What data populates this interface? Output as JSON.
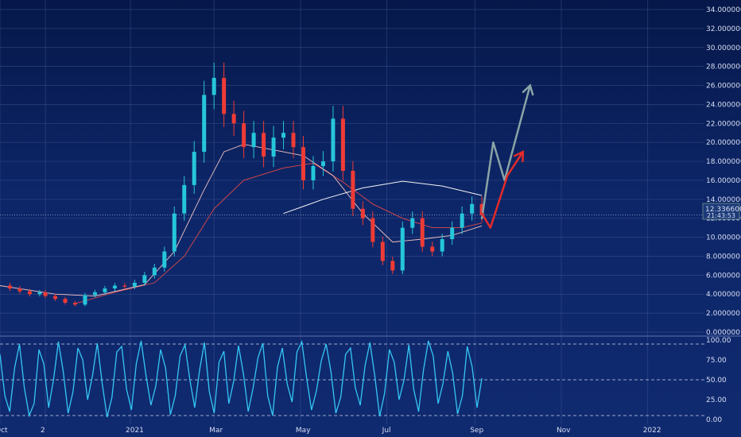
{
  "chart_data": [
    {
      "type": "candlestick",
      "currency": "USD",
      "ylim": [
        0,
        34
      ],
      "y_ticks": [
        "34.000000",
        "32.000000",
        "30.000000",
        "28.000000",
        "26.000000",
        "24.000000",
        "22.000000",
        "20.000000",
        "18.000000",
        "16.000000",
        "14.000000",
        "12.000000",
        "10.000000",
        "8.000000",
        "6.000000",
        "4.000000",
        "2.000000",
        "0.000000"
      ],
      "y_tick_values": [
        34,
        32,
        30,
        28,
        26,
        24,
        22,
        20,
        18,
        16,
        14,
        12,
        10,
        8,
        6,
        4,
        2,
        0
      ],
      "x_ticks": [
        "Oct",
        "2",
        "2021",
        "Mar",
        "May",
        "Jul",
        "Sep",
        "Nov",
        "2022"
      ],
      "x_tick_dates": [
        "2020-10-01",
        "2020-11-02",
        "2021-01-01",
        "2021-03-01",
        "2021-05-01",
        "2021-07-01",
        "2021-09-01",
        "2021-11-01",
        "2022-01-01"
      ],
      "x_start": "2020-10-01",
      "x_end": "2022-02-10",
      "last_price": 12.3366,
      "closes": [
        [
          "2020-10-01",
          4.9
        ],
        [
          "2020-10-08",
          4.6
        ],
        [
          "2020-10-15",
          4.3
        ],
        [
          "2020-10-22",
          4.0
        ],
        [
          "2020-10-29",
          4.2
        ],
        [
          "2020-11-02",
          3.8
        ],
        [
          "2020-11-09",
          3.5
        ],
        [
          "2020-11-16",
          3.1
        ],
        [
          "2020-11-23",
          2.9
        ],
        [
          "2020-11-30",
          3.9
        ],
        [
          "2020-12-07",
          4.2
        ],
        [
          "2020-12-14",
          4.6
        ],
        [
          "2020-12-21",
          4.9
        ],
        [
          "2020-12-28",
          4.8
        ],
        [
          "2021-01-04",
          5.2
        ],
        [
          "2021-01-11",
          6.0
        ],
        [
          "2021-01-18",
          6.8
        ],
        [
          "2021-01-25",
          8.5
        ],
        [
          "2021-02-01",
          12.5
        ],
        [
          "2021-02-08",
          15.5
        ],
        [
          "2021-02-15",
          19.0
        ],
        [
          "2021-02-22",
          25.0
        ],
        [
          "2021-03-01",
          26.8
        ],
        [
          "2021-03-08",
          23.0
        ],
        [
          "2021-03-15",
          22.0
        ],
        [
          "2021-03-22",
          19.5
        ],
        [
          "2021-03-29",
          21.0
        ],
        [
          "2021-04-05",
          18.5
        ],
        [
          "2021-04-12",
          20.5
        ],
        [
          "2021-04-19",
          21.0
        ],
        [
          "2021-04-26",
          19.5
        ],
        [
          "2021-05-03",
          16.0
        ],
        [
          "2021-05-10",
          17.5
        ],
        [
          "2021-05-17",
          18.0
        ],
        [
          "2021-05-24",
          22.5
        ],
        [
          "2021-05-31",
          17.0
        ],
        [
          "2021-06-07",
          13.0
        ],
        [
          "2021-06-14",
          12.0
        ],
        [
          "2021-06-21",
          9.5
        ],
        [
          "2021-06-28",
          7.5
        ],
        [
          "2021-07-05",
          6.5
        ],
        [
          "2021-07-12",
          11.0
        ],
        [
          "2021-07-19",
          12.0
        ],
        [
          "2021-07-26",
          9.0
        ],
        [
          "2021-08-02",
          8.5
        ],
        [
          "2021-08-09",
          9.8
        ],
        [
          "2021-08-16",
          11.0
        ],
        [
          "2021-08-23",
          12.5
        ],
        [
          "2021-08-30",
          13.5
        ],
        [
          "2021-09-06",
          12.3366
        ]
      ],
      "ma_fast": [
        [
          "2020-10-01",
          4.9
        ],
        [
          "2020-11-09",
          4.0
        ],
        [
          "2020-12-07",
          3.8
        ],
        [
          "2021-01-11",
          5.0
        ],
        [
          "2021-02-01",
          8.5
        ],
        [
          "2021-02-22",
          15.0
        ],
        [
          "2021-03-08",
          19.0
        ],
        [
          "2021-03-22",
          19.8
        ],
        [
          "2021-04-12",
          19.2
        ],
        [
          "2021-05-03",
          18.6
        ],
        [
          "2021-05-24",
          16.5
        ],
        [
          "2021-06-14",
          12.5
        ],
        [
          "2021-07-05",
          9.5
        ],
        [
          "2021-07-26",
          9.8
        ],
        [
          "2021-08-16",
          10.2
        ],
        [
          "2021-09-06",
          11.2
        ]
      ],
      "ma_slow": [
        [
          "2020-11-23",
          3.0
        ],
        [
          "2020-12-21",
          4.2
        ],
        [
          "2021-01-18",
          5.2
        ],
        [
          "2021-02-08",
          8.0
        ],
        [
          "2021-03-01",
          13.0
        ],
        [
          "2021-03-22",
          16.0
        ],
        [
          "2021-04-19",
          17.3
        ],
        [
          "2021-05-10",
          17.8
        ],
        [
          "2021-05-31",
          15.8
        ],
        [
          "2021-06-21",
          13.5
        ],
        [
          "2021-07-12",
          12.0
        ],
        [
          "2021-08-02",
          11.0
        ],
        [
          "2021-08-23",
          11.0
        ],
        [
          "2021-09-06",
          11.5
        ]
      ],
      "ma_long": [
        [
          "2021-04-19",
          12.5
        ],
        [
          "2021-05-17",
          14.0
        ],
        [
          "2021-06-14",
          15.2
        ],
        [
          "2021-07-12",
          15.9
        ],
        [
          "2021-08-09",
          15.4
        ],
        [
          "2021-09-06",
          14.4
        ]
      ],
      "projection_up": [
        [
          "2021-09-06",
          12.0
        ],
        [
          "2021-09-14",
          20.0
        ],
        [
          "2021-09-22",
          16.0
        ],
        [
          "2021-10-10",
          26.0
        ]
      ],
      "projection_down": [
        [
          "2021-09-06",
          12.5
        ],
        [
          "2021-09-12",
          11.0
        ],
        [
          "2021-09-24",
          16.5
        ],
        [
          "2021-10-05",
          19.0
        ]
      ]
    },
    {
      "type": "line",
      "ylim": [
        0,
        100
      ],
      "y_ticks": [
        "100.00",
        "75.00",
        "50.00",
        "25.00",
        "0.00"
      ],
      "y_tick_values": [
        100,
        75,
        50,
        25,
        0
      ],
      "levels": [
        95,
        50,
        5
      ],
      "values": [
        82,
        30,
        10,
        65,
        95,
        40,
        5,
        20,
        88,
        70,
        15,
        50,
        98,
        60,
        8,
        35,
        90,
        75,
        25,
        55,
        96,
        45,
        3,
        28,
        85,
        92,
        38,
        12,
        70,
        99,
        55,
        18,
        42,
        88,
        65,
        6,
        30,
        80,
        94,
        50,
        15,
        62,
        97,
        35,
        8,
        72,
        86,
        20,
        48,
        93,
        58,
        10,
        40,
        78,
        96,
        30,
        5,
        66,
        90,
        45,
        22,
        85,
        98,
        52,
        12,
        36,
        74,
        95,
        60,
        8,
        28,
        82,
        90,
        40,
        18,
        68,
        97,
        55,
        4,
        33,
        88,
        72,
        25,
        50,
        94,
        38,
        10,
        62,
        99,
        80,
        20,
        45,
        86,
        58,
        7,
        30,
        92,
        66,
        15,
        52
      ]
    }
  ],
  "price_tag": {
    "value": "12.336600",
    "countdown": "21:43:53"
  },
  "colors": {
    "up": "#26c6da",
    "down": "#ef3b36",
    "ma_fast": "#f2c2c2",
    "ma_slow": "#e04848",
    "ma_long": "#f4f4f4",
    "arrow_up": "#8aa4a6",
    "arrow_down": "#e52a2a",
    "oscillator": "#35c6f4"
  }
}
